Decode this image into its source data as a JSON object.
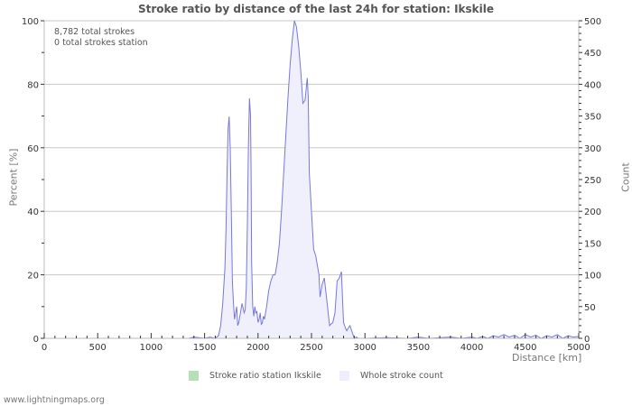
{
  "title": "Stroke ratio by distance of the last 24h for station: Ikskile",
  "info": {
    "total_strokes": "8,782 total strokes",
    "station_strokes": "0 total strokes station"
  },
  "axes": {
    "x_label": "Distance   [km]",
    "y_left_label": "Percent   [%]",
    "y_right_label": "Count",
    "x_ticks": [
      "0",
      "500",
      "1000",
      "1500",
      "2000",
      "2500",
      "3000",
      "3500",
      "4000",
      "4500",
      "5000"
    ],
    "y_left_ticks": [
      "0",
      "20",
      "40",
      "60",
      "80",
      "100"
    ],
    "y_right_ticks": [
      "0",
      "50",
      "100",
      "150",
      "200",
      "250",
      "300",
      "350",
      "400",
      "450",
      "500"
    ]
  },
  "legend": {
    "items": [
      {
        "label": "Stroke ratio station Ikskile",
        "color": "#b5e0b5"
      },
      {
        "label": "Whole stroke count",
        "color": "#eeeefc"
      }
    ]
  },
  "footer": "www.lightningmaps.org",
  "colors": {
    "line": "#7777dd",
    "fill": "#f0f0fc",
    "grid": "#c8c8c8",
    "axis": "#bbbbbb"
  },
  "chart_data": {
    "type": "area",
    "title": "Stroke ratio by distance of the last 24h for station: Ikskile",
    "xlabel": "Distance [km]",
    "ylabel": "Percent [%]",
    "y2label": "Count",
    "xlim": [
      0,
      5000
    ],
    "ylim": [
      0,
      100
    ],
    "y2lim": [
      0,
      500
    ],
    "grid": true,
    "legend_position": "bottom",
    "series": [
      {
        "name": "Stroke ratio station Ikskile",
        "axis": "left",
        "x": [],
        "values": []
      },
      {
        "name": "Whole stroke count",
        "axis": "right",
        "x": [
          0,
          1350,
          1400,
          1500,
          1550,
          1600,
          1630,
          1650,
          1670,
          1690,
          1700,
          1710,
          1720,
          1730,
          1740,
          1750,
          1760,
          1770,
          1780,
          1800,
          1810,
          1820,
          1840,
          1850,
          1860,
          1870,
          1880,
          1890,
          1900,
          1910,
          1920,
          1930,
          1935,
          1940,
          1950,
          1960,
          1970,
          1980,
          1990,
          2000,
          2010,
          2020,
          2030,
          2040,
          2050,
          2060,
          2080,
          2100,
          2120,
          2140,
          2160,
          2180,
          2200,
          2220,
          2240,
          2260,
          2280,
          2300,
          2320,
          2340,
          2360,
          2380,
          2400,
          2420,
          2440,
          2460,
          2470,
          2480,
          2500,
          2520,
          2540,
          2560,
          2570,
          2580,
          2600,
          2620,
          2640,
          2660,
          2670,
          2680,
          2700,
          2720,
          2740,
          2760,
          2780,
          2790,
          2800,
          2820,
          2830,
          2840,
          2860,
          2880,
          2900,
          2920,
          2940,
          2960,
          3000,
          3200,
          3400,
          3500,
          3600,
          3800,
          3900,
          4000,
          4050,
          4100,
          4150,
          4200,
          4250,
          4300,
          4350,
          4400,
          4450,
          4500,
          4550,
          4600,
          4650,
          4700,
          4750,
          4800,
          4850,
          4900,
          4950,
          5000
        ],
        "values": [
          0,
          0,
          2,
          0,
          2,
          0,
          4,
          20,
          55,
          110,
          170,
          260,
          330,
          349,
          300,
          200,
          90,
          55,
          30,
          50,
          20,
          25,
          45,
          55,
          48,
          40,
          45,
          80,
          180,
          300,
          378,
          350,
          260,
          120,
          50,
          35,
          50,
          40,
          42,
          25,
          30,
          40,
          22,
          24,
          35,
          30,
          50,
          75,
          90,
          100,
          100,
          120,
          150,
          200,
          260,
          320,
          380,
          430,
          470,
          500,
          490,
          460,
          420,
          370,
          375,
          410,
          380,
          260,
          200,
          140,
          130,
          110,
          100,
          65,
          85,
          95,
          65,
          35,
          20,
          22,
          25,
          40,
          90,
          95,
          105,
          65,
          25,
          15,
          12,
          15,
          20,
          10,
          0,
          2,
          0,
          0,
          0,
          1,
          0,
          2,
          0,
          2,
          0,
          2,
          0,
          3,
          0,
          4,
          2,
          6,
          2,
          5,
          0,
          6,
          2,
          5,
          0,
          4,
          2,
          6,
          0,
          4,
          2,
          3
        ]
      }
    ]
  }
}
